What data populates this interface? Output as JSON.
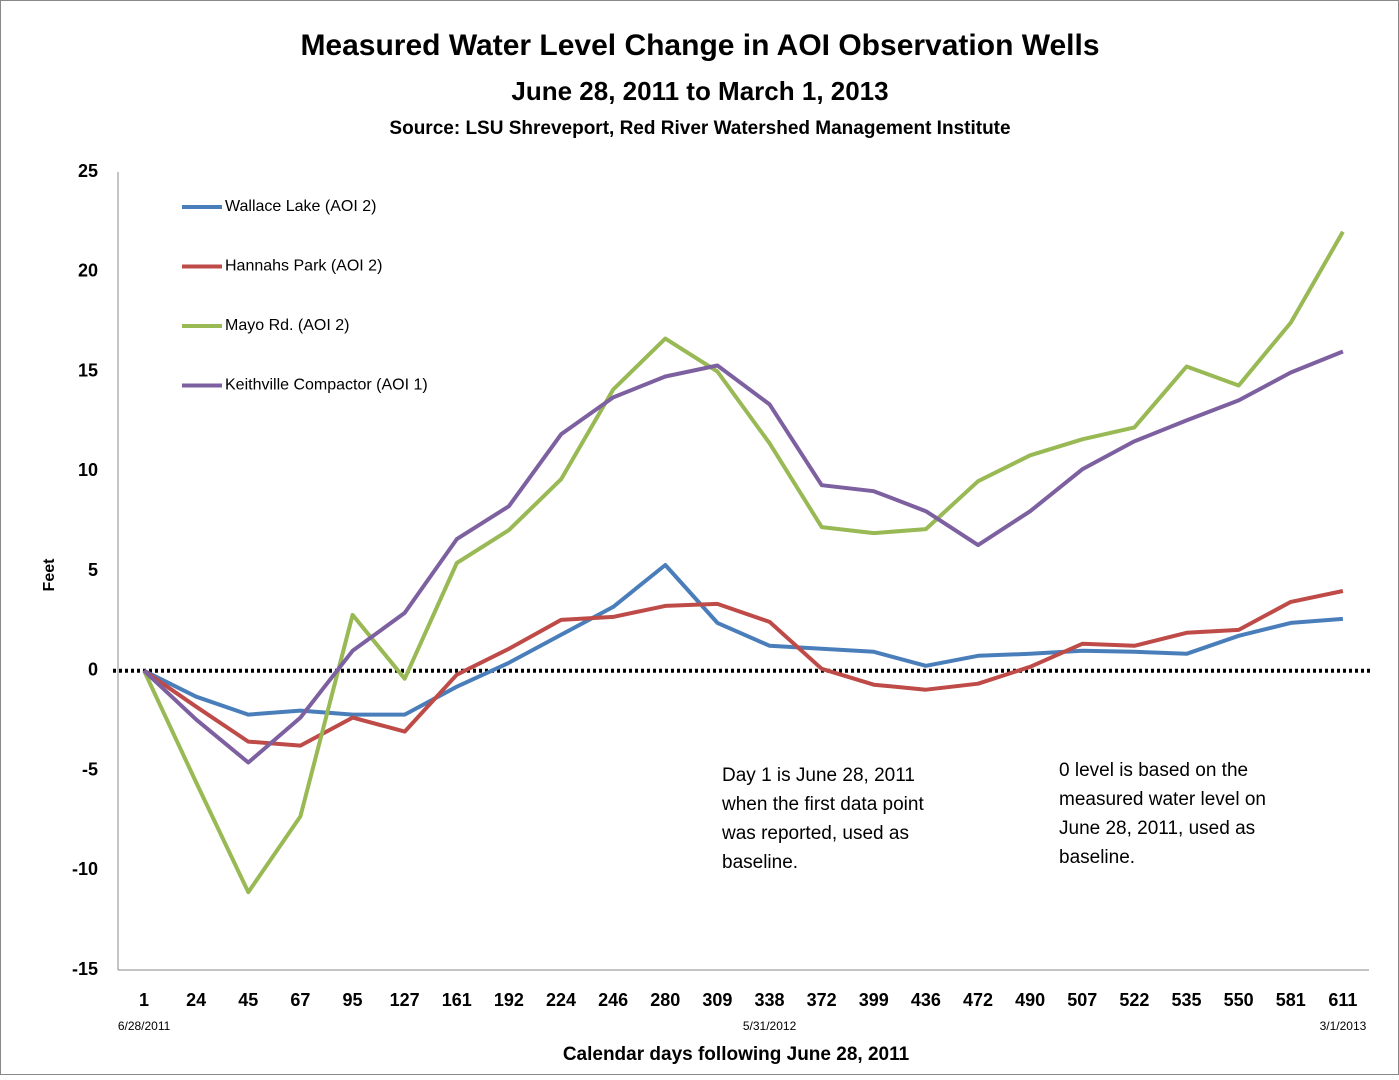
{
  "chart_data": {
    "type": "line",
    "title": "Measured Water Level Change in AOI Observation Wells",
    "subtitle": "June 28, 2011 to March 1, 2013",
    "source": "Source: LSU Shreveport, Red River Watershed Management Institute",
    "y_label": "Feet",
    "x_label": "Calendar days following June 28, 2011",
    "categories": [
      "1",
      "24",
      "45",
      "67",
      "95",
      "127",
      "161",
      "192",
      "224",
      "246",
      "280",
      "309",
      "338",
      "372",
      "399",
      "436",
      "472",
      "490",
      "507",
      "522",
      "535",
      "550",
      "581",
      "611"
    ],
    "category_dates": [
      "6/28/2011",
      null,
      null,
      null,
      null,
      null,
      null,
      null,
      null,
      null,
      null,
      null,
      "5/31/2012",
      null,
      null,
      null,
      null,
      null,
      null,
      null,
      null,
      null,
      null,
      "3/1/2013"
    ],
    "ylim": [
      -15,
      25
    ],
    "yticks": [
      -15,
      -10,
      -5,
      0,
      5,
      10,
      15,
      20,
      25
    ],
    "grid": false,
    "zero_line": true,
    "legend": "upper left",
    "series": [
      {
        "name": "Wallace Lake (AOI 2)",
        "color": "#4a7ebb",
        "values": [
          0,
          -1.3,
          -2.2,
          -2.0,
          -2.2,
          -2.2,
          -0.8,
          0.4,
          1.8,
          3.2,
          5.3,
          2.4,
          1.25,
          1.1,
          0.95,
          0.25,
          0.75,
          0.85,
          1.0,
          0.95,
          0.85,
          1.75,
          2.4,
          2.6
        ]
      },
      {
        "name": "Hannahs Park (AOI 2)",
        "color": "#be4b48",
        "values": [
          0,
          -1.8,
          -3.55,
          -3.75,
          -2.35,
          -3.05,
          -0.2,
          1.1,
          2.55,
          2.7,
          3.25,
          3.35,
          2.45,
          0.1,
          -0.7,
          -0.95,
          -0.65,
          0.2,
          1.35,
          1.25,
          1.9,
          2.05,
          3.45,
          4.0
        ]
      },
      {
        "name": "Mayo Rd. (AOI 2)",
        "color": "#98b954",
        "values": [
          0,
          -5.6,
          -11.1,
          -7.3,
          2.8,
          -0.4,
          5.4,
          7.05,
          9.6,
          14.1,
          16.65,
          15.0,
          11.4,
          7.2,
          6.9,
          7.1,
          9.5,
          10.8,
          11.6,
          12.2,
          15.25,
          14.3,
          17.45,
          22.0
        ]
      },
      {
        "name": "Keithville Compactor (AOI 1)",
        "color": "#7d60a0",
        "values": [
          0,
          -2.45,
          -4.6,
          -2.35,
          1.0,
          2.9,
          6.6,
          8.25,
          11.85,
          13.7,
          14.75,
          15.3,
          13.35,
          9.3,
          9.0,
          8.0,
          6.3,
          8.0,
          10.1,
          11.5,
          12.55,
          13.55,
          14.95,
          16.0
        ]
      }
    ],
    "annotations": [
      [
        "Day 1 is June 28, 2011",
        "when the first data point",
        "was reported, used as",
        "baseline."
      ],
      [
        "0 level is based on the",
        "measured water level on",
        "June 28, 2011, used as",
        "baseline."
      ]
    ]
  }
}
